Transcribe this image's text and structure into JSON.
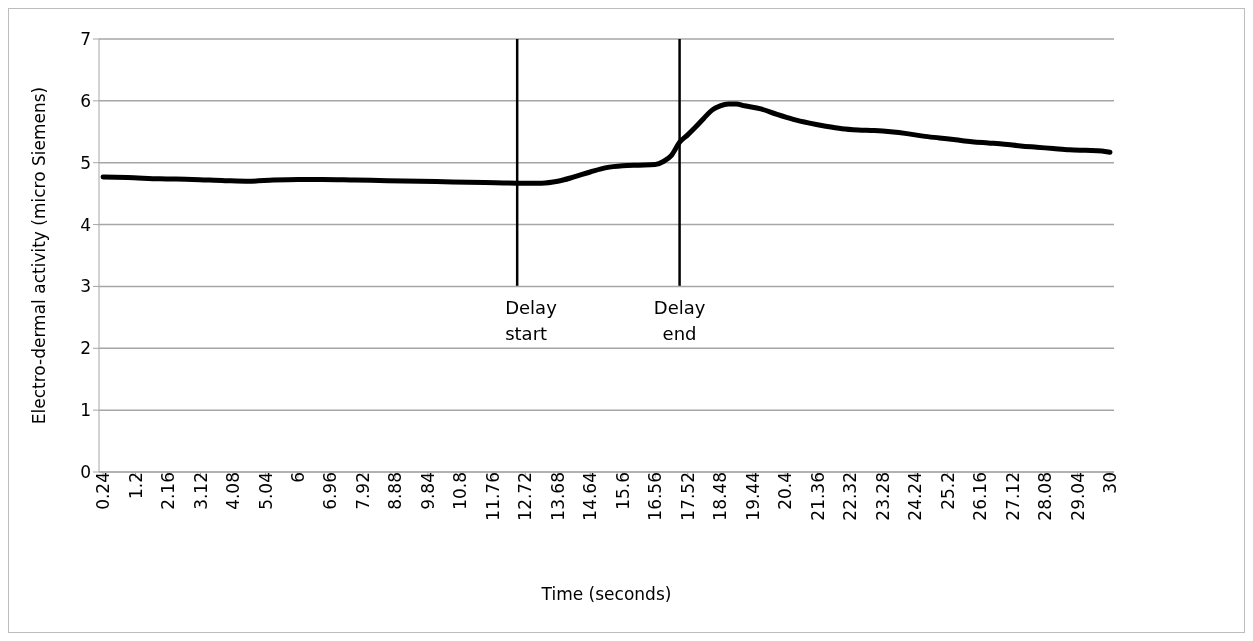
{
  "chart_data": {
    "type": "line",
    "xlabel": "Time (seconds)",
    "ylabel": "Electro-dermal activity (micro Siemens)",
    "xlim": [
      0.12,
      30.12
    ],
    "ylim": [
      0,
      7
    ],
    "yticks": [
      0,
      1,
      2,
      3,
      4,
      5,
      6,
      7
    ],
    "xticks": [
      0.24,
      1.2,
      2.16,
      3.12,
      4.08,
      5.04,
      6,
      6.96,
      7.92,
      8.88,
      9.84,
      10.8,
      11.76,
      12.72,
      13.68,
      14.64,
      15.6,
      16.56,
      17.52,
      18.48,
      19.44,
      20.4,
      21.36,
      22.32,
      23.28,
      24.24,
      25.2,
      26.16,
      27.12,
      28.08,
      29.04,
      30
    ],
    "grid": "y",
    "legend": false,
    "series": [
      {
        "color": "#000000",
        "x": [
          0.24,
          0.96,
          1.92,
          2.88,
          3.84,
          4.56,
          5.28,
          6.0,
          6.72,
          7.68,
          8.64,
          9.6,
          10.56,
          11.52,
          12.48,
          13.2,
          13.68,
          14.16,
          14.64,
          15.12,
          15.6,
          16.08,
          16.56,
          16.8,
          17.04,
          17.28,
          17.52,
          17.76,
          18.0,
          18.24,
          18.48,
          18.72,
          18.96,
          19.2,
          19.68,
          20.16,
          20.64,
          21.12,
          21.6,
          22.08,
          22.56,
          23.04,
          23.52,
          24.0,
          24.48,
          24.96,
          25.44,
          25.92,
          26.4,
          26.88,
          27.36,
          27.84,
          28.32,
          28.8,
          29.28,
          29.76,
          30.0
        ],
        "values": [
          4.77,
          4.76,
          4.74,
          4.73,
          4.71,
          4.7,
          4.72,
          4.73,
          4.73,
          4.72,
          4.71,
          4.7,
          4.69,
          4.68,
          4.67,
          4.67,
          4.7,
          4.77,
          4.85,
          4.92,
          4.95,
          4.96,
          4.97,
          5.02,
          5.12,
          5.33,
          5.45,
          5.58,
          5.72,
          5.85,
          5.92,
          5.95,
          5.95,
          5.92,
          5.87,
          5.78,
          5.7,
          5.64,
          5.59,
          5.55,
          5.53,
          5.52,
          5.5,
          5.47,
          5.43,
          5.4,
          5.37,
          5.34,
          5.32,
          5.3,
          5.27,
          5.25,
          5.23,
          5.21,
          5.2,
          5.19,
          5.17
        ]
      }
    ],
    "ref_lines": [
      {
        "axis": "x",
        "value": 12.48,
        "label": "Delay start",
        "color": "#000000"
      },
      {
        "axis": "x",
        "value": 17.28,
        "label": "Delay end",
        "color": "#000000"
      }
    ]
  }
}
